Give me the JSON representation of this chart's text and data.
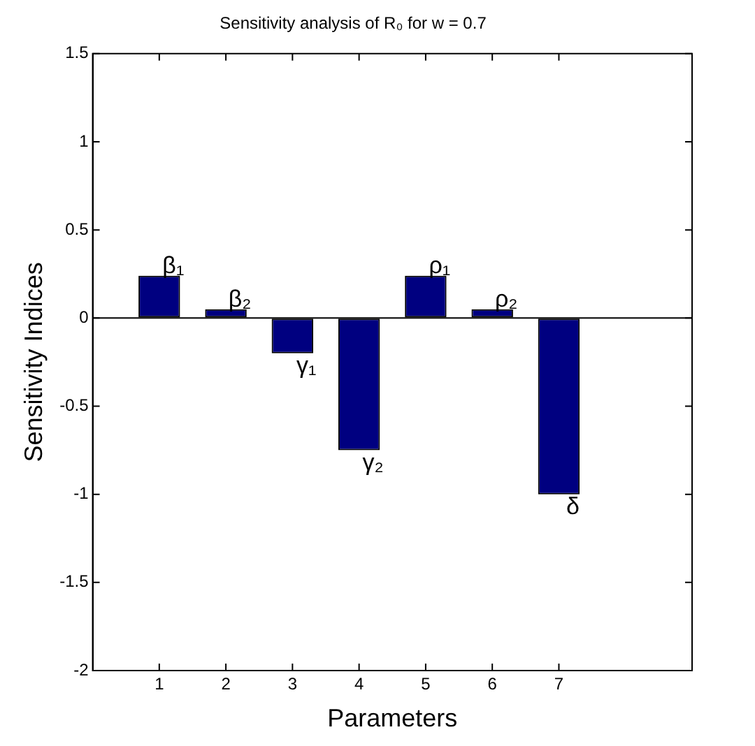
{
  "chart_data": {
    "type": "bar",
    "title": "Sensitivity analysis of R₀ for w = 0.7",
    "xlabel": "Parameters",
    "ylabel": "Sensitivity Indices",
    "x": [
      1,
      2,
      3,
      4,
      5,
      6,
      7
    ],
    "values": [
      0.24,
      0.05,
      -0.2,
      -0.75,
      0.24,
      0.05,
      -1.0
    ],
    "color": "#000080",
    "xlim": [
      0,
      9
    ],
    "xticks": [
      1,
      2,
      3,
      4,
      5,
      6,
      7
    ],
    "ylim": [
      -2,
      1.5
    ],
    "yticks": [
      -2,
      -1.5,
      -1,
      -0.5,
      0,
      0.5,
      1,
      1.5
    ],
    "ref_lines": [
      {
        "axis": "y",
        "value": 0
      }
    ],
    "annotations": [
      {
        "text": "β₁",
        "x": 1,
        "y": 0.24
      },
      {
        "text": "β₂",
        "x": 2,
        "y": 0.05
      },
      {
        "text": "γ₁",
        "x": 3,
        "y": -0.2
      },
      {
        "text": "γ₂",
        "x": 4,
        "y": -0.75
      },
      {
        "text": "ρ₁",
        "x": 5,
        "y": 0.24
      },
      {
        "text": "ρ₂",
        "x": 6,
        "y": 0.05
      },
      {
        "text": "δ",
        "x": 7,
        "y": -1.0
      }
    ],
    "grid": false,
    "legend": false
  }
}
